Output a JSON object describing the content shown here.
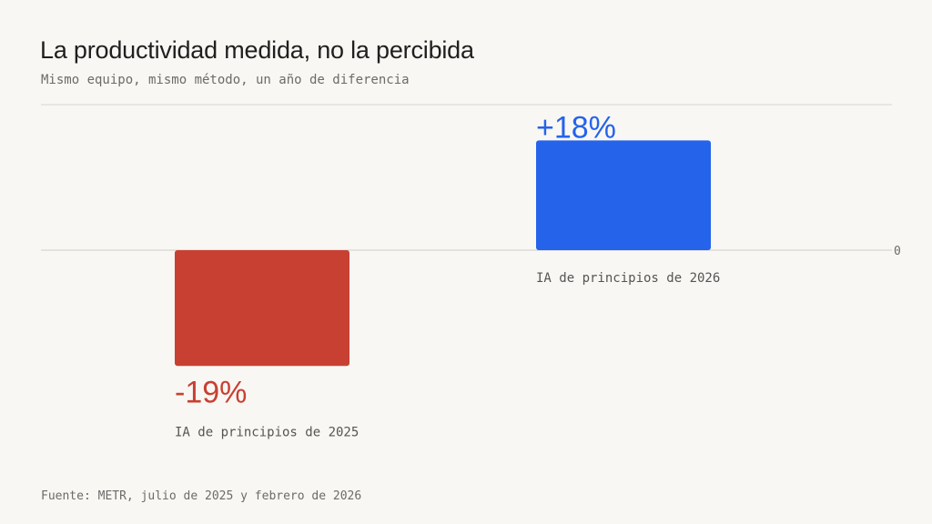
{
  "title": "La productividad medida, no la percibida",
  "subtitle": "Mismo equipo, mismo método, un año de diferencia",
  "source": "Fuente: METR, julio de 2025 y febrero de 2026",
  "chart_data": {
    "type": "bar",
    "categories": [
      "IA de principios de 2025",
      "IA de principios de 2026"
    ],
    "values": [
      -19,
      18
    ],
    "value_labels": [
      "-19%",
      "+18%"
    ],
    "colors": [
      "#c84032",
      "#2563eb"
    ],
    "y_ticks": [
      "0"
    ],
    "ylim": [
      -25,
      25
    ],
    "grid": "top line and zero line",
    "legend": "none"
  }
}
